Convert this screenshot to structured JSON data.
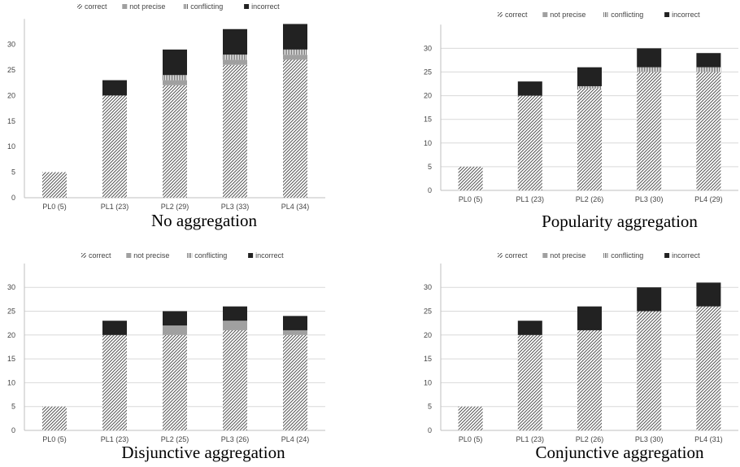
{
  "legend_labels": [
    "correct",
    "not precise",
    "conflicting",
    "incorrect"
  ],
  "colors": {
    "correct": "#555555",
    "not_precise": "#a0a0a0",
    "conflicting": "#666666",
    "incorrect": "#222222",
    "axis": "#bfbfbf",
    "grid": "#d9d9d9"
  },
  "chart_data": [
    {
      "type": "bar",
      "stacked": true,
      "title": "No aggregation",
      "categories": [
        "PL0 (5)",
        "PL1 (23)",
        "PL2 (29)",
        "PL3 (33)",
        "PL4 (34)"
      ],
      "ylim": [
        0,
        35
      ],
      "yticks": [
        0,
        5,
        10,
        15,
        20,
        25,
        30
      ],
      "grid": false,
      "legend_position": "top",
      "series": [
        {
          "name": "correct",
          "values": [
            5,
            20,
            22,
            26,
            27
          ]
        },
        {
          "name": "not precise",
          "values": [
            0,
            0,
            1,
            1,
            1
          ]
        },
        {
          "name": "conflicting",
          "values": [
            0,
            0,
            1,
            1,
            1
          ]
        },
        {
          "name": "incorrect",
          "values": [
            0,
            3,
            5,
            5,
            5
          ]
        }
      ]
    },
    {
      "type": "bar",
      "stacked": true,
      "title": "Popularity aggregation",
      "categories": [
        "PL0 (5)",
        "PL1 (23)",
        "PL2 (26)",
        "PL3 (30)",
        "PL4 (29)"
      ],
      "ylim": [
        0,
        35
      ],
      "yticks": [
        0,
        5,
        10,
        15,
        20,
        25,
        30
      ],
      "grid": true,
      "legend_position": "top",
      "series": [
        {
          "name": "correct",
          "values": [
            5,
            20,
            21.5,
            25,
            25
          ]
        },
        {
          "name": "not precise",
          "values": [
            0,
            0,
            0,
            0,
            0
          ]
        },
        {
          "name": "conflicting",
          "values": [
            0,
            0,
            0.5,
            1,
            1
          ]
        },
        {
          "name": "incorrect",
          "values": [
            0,
            3,
            4,
            4,
            3
          ]
        }
      ]
    },
    {
      "type": "bar",
      "stacked": true,
      "title": "Disjunctive aggregation",
      "categories": [
        "PL0 (5)",
        "PL1 (23)",
        "PL2 (25)",
        "PL3 (26)",
        "PL4 (24)"
      ],
      "ylim": [
        0,
        35
      ],
      "yticks": [
        0,
        5,
        10,
        15,
        20,
        25,
        30
      ],
      "grid": true,
      "legend_position": "top",
      "series": [
        {
          "name": "correct",
          "values": [
            5,
            20,
            20,
            21,
            20
          ]
        },
        {
          "name": "not precise",
          "values": [
            0,
            0,
            2,
            2,
            1
          ]
        },
        {
          "name": "conflicting",
          "values": [
            0,
            0,
            0,
            0,
            0
          ]
        },
        {
          "name": "incorrect",
          "values": [
            0,
            3,
            3,
            3,
            3
          ]
        }
      ]
    },
    {
      "type": "bar",
      "stacked": true,
      "title": "Conjunctive aggregation",
      "categories": [
        "PL0 (5)",
        "PL1 (23)",
        "PL2 (26)",
        "PL3 (30)",
        "PL4 (31)"
      ],
      "ylim": [
        0,
        35
      ],
      "yticks": [
        0,
        5,
        10,
        15,
        20,
        25,
        30
      ],
      "grid": true,
      "legend_position": "top",
      "series": [
        {
          "name": "correct",
          "values": [
            5,
            20,
            21,
            25,
            26
          ]
        },
        {
          "name": "not precise",
          "values": [
            0,
            0,
            0,
            0,
            0
          ]
        },
        {
          "name": "conflicting",
          "values": [
            0,
            0,
            0,
            0,
            0
          ]
        },
        {
          "name": "incorrect",
          "values": [
            0,
            3,
            5,
            5,
            5
          ]
        }
      ]
    }
  ]
}
